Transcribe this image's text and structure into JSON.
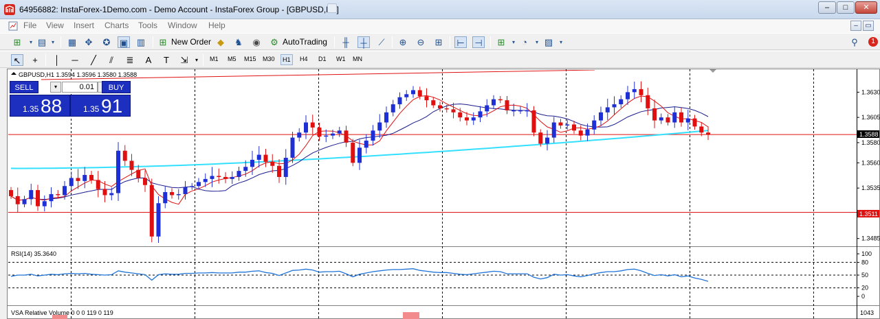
{
  "window": {
    "title": "64956882: InstaForex-1Demo.com - Demo Account - InstaForex Group - [GBPUSD,H1]",
    "minimize": "–",
    "maximize": "□",
    "close": "✕"
  },
  "menu": {
    "items": [
      "File",
      "View",
      "Insert",
      "Charts",
      "Tools",
      "Window",
      "Help"
    ]
  },
  "toolbar": {
    "new_order_label": "New Order",
    "autotrading_label": "AutoTrading",
    "notification_count": "1"
  },
  "timeframes": [
    "M1",
    "M5",
    "M15",
    "M30",
    "H1",
    "H4",
    "D1",
    "W1",
    "MN"
  ],
  "active_timeframe": "H1",
  "chart_header": "GBPUSD,H1  1.3594 1.3596 1.3580 1.3588",
  "one_click": {
    "sell_label": "SELL",
    "buy_label": "BUY",
    "lot": "0.01",
    "sell_prefix": "1.35",
    "sell_big": "88",
    "buy_prefix": "1.35",
    "buy_big": "91"
  },
  "price_labels": {
    "current": "1.3588",
    "hline": "1.3511"
  },
  "rsi_header": "RSI(14) 35.3640",
  "vsa_header": "VSA Relative Volume 0 0 0 119 0 119",
  "vsa_axis_label": "1043",
  "colors": {
    "bull": "#1f2fd6",
    "bear": "#e01010",
    "ma_fast": "#e01010",
    "ma_slow": "#1a1a8c",
    "ma_long": "#33e0ff",
    "rsi": "#1e73d6",
    "hline": "#e01010"
  },
  "chart_data": [
    {
      "type": "candlestick",
      "symbol": "GBPUSD",
      "timeframe": "H1",
      "ylim": [
        1.3478,
        1.3652
      ],
      "y_ticks": [
        "1.3630",
        "1.3605",
        "1.3580",
        "1.3560",
        "1.3535",
        "1.3485"
      ],
      "horizontal_lines": [
        1.3588,
        1.3511
      ],
      "closes": [
        1.3527,
        1.3519,
        1.3524,
        1.3533,
        1.3517,
        1.3522,
        1.3529,
        1.3528,
        1.3537,
        1.3545,
        1.3542,
        1.3548,
        1.3543,
        1.3534,
        1.3528,
        1.353,
        1.3572,
        1.3562,
        1.3553,
        1.3545,
        1.3538,
        1.3487,
        1.352,
        1.3531,
        1.3528,
        1.3529,
        1.3536,
        1.3537,
        1.3541,
        1.3544,
        1.3547,
        1.3546,
        1.3544,
        1.3546,
        1.3552,
        1.3556,
        1.3563,
        1.3568,
        1.3561,
        1.3557,
        1.3546,
        1.3565,
        1.3585,
        1.359,
        1.36,
        1.3595,
        1.3586,
        1.3587,
        1.3589,
        1.3592,
        1.358,
        1.356,
        1.3575,
        1.3582,
        1.3592,
        1.36,
        1.361,
        1.3618,
        1.3625,
        1.3628,
        1.3632,
        1.3626,
        1.3622,
        1.3617,
        1.3614,
        1.3613,
        1.361,
        1.3605,
        1.3602,
        1.3605,
        1.3611,
        1.3617,
        1.3623,
        1.3622,
        1.3612,
        1.3612,
        1.3612,
        1.3612,
        1.359,
        1.3579,
        1.3585,
        1.36,
        1.3597,
        1.3598,
        1.3592,
        1.3587,
        1.3593,
        1.3602,
        1.361,
        1.3615,
        1.3618,
        1.3623,
        1.363,
        1.3633,
        1.3627,
        1.3614,
        1.3602,
        1.3605,
        1.36,
        1.361,
        1.36,
        1.3604,
        1.3596,
        1.359,
        1.3588
      ],
      "ma_fast_last": 1.3591,
      "ma_slow_last": 1.3602,
      "ma_long_last": 1.3592
    },
    {
      "type": "line",
      "name": "RSI(14)",
      "ylim": [
        0,
        100
      ],
      "y_ticks": [
        100,
        80,
        50,
        20,
        0
      ],
      "levels": [
        80,
        50,
        20
      ],
      "values": [
        47,
        50,
        50,
        52,
        48,
        50,
        52,
        51,
        53,
        54,
        53,
        54,
        52,
        51,
        50,
        51,
        60,
        57,
        55,
        53,
        51,
        38,
        51,
        53,
        52,
        52,
        54,
        54,
        55,
        55,
        56,
        55,
        55,
        55,
        57,
        57,
        59,
        60,
        56,
        54,
        49,
        55,
        61,
        62,
        64,
        62,
        57,
        58,
        58,
        59,
        53,
        46,
        52,
        55,
        58,
        60,
        62,
        63,
        63,
        64,
        65,
        61,
        59,
        57,
        56,
        56,
        54,
        52,
        51,
        53,
        55,
        57,
        59,
        58,
        53,
        53,
        53,
        53,
        45,
        41,
        44,
        52,
        50,
        51,
        48,
        46,
        49,
        53,
        56,
        58,
        58,
        60,
        63,
        64,
        60,
        54,
        49,
        51,
        48,
        51,
        46,
        48,
        43,
        40,
        35.364
      ]
    },
    {
      "type": "bar",
      "name": "VSA Relative Volume",
      "y_ticks": [
        "1043"
      ]
    }
  ]
}
